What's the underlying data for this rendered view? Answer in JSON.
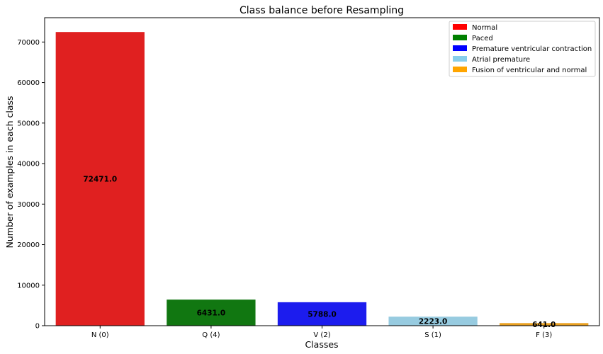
{
  "chart_data": {
    "type": "bar",
    "title": "Class balance before Resampling",
    "xlabel": "Classes",
    "ylabel": "Number of examples in each class",
    "categories": [
      "N (0)",
      "Q (4)",
      "V (2)",
      "S (1)",
      "F (3)"
    ],
    "values": [
      72471,
      6431,
      5788,
      2223,
      641
    ],
    "data_labels": [
      "72471.0",
      "6431.0",
      "5788.0",
      "2223.0",
      "641.0"
    ],
    "bar_colors": [
      "#e02020",
      "#117711",
      "#1c1cee",
      "#97cbe0",
      "#eaa020"
    ],
    "ylim": [
      0,
      76000
    ],
    "yticks": [
      0,
      10000,
      20000,
      30000,
      40000,
      50000,
      60000,
      70000
    ],
    "ytick_labels": [
      "0",
      "10000",
      "20000",
      "30000",
      "40000",
      "50000",
      "60000",
      "70000"
    ],
    "grid": false,
    "legend": {
      "placement": "top-right",
      "entries": [
        {
          "label": "Normal",
          "color": "#ff0000"
        },
        {
          "label": "Paced",
          "color": "#008000"
        },
        {
          "label": "Premature ventricular contraction",
          "color": "#0000ff"
        },
        {
          "label": "Atrial premature",
          "color": "#87ceeb"
        },
        {
          "label": "Fusion of ventricular and normal",
          "color": "#ffa500"
        }
      ]
    }
  }
}
